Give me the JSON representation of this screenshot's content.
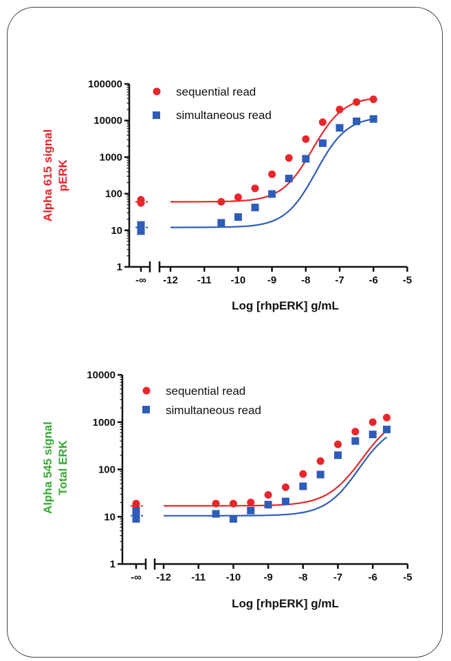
{
  "chart_data": [
    {
      "type": "scatter",
      "ylabel_lines": [
        "Alpha 615 signal",
        "pERK"
      ],
      "ylabel_color": "#e8262b",
      "xlabel": "Log [rhpERK] g/mL",
      "y_scale": "log",
      "ylim": [
        1,
        100000
      ],
      "y_ticks": [
        "1",
        "10",
        "100",
        "1000",
        "10000",
        "100000"
      ],
      "x_ticks": [
        "-12",
        "-11",
        "-10",
        "-9",
        "-8",
        "-7",
        "-6",
        "-5"
      ],
      "x_break_label": "-∞",
      "legend_placement": "top-left",
      "series": [
        {
          "name": "sequential read",
          "color": "#e8262b",
          "marker": "circle",
          "points": [
            {
              "x": "-∞",
              "y": 68
            },
            {
              "x": "-∞",
              "y": 56
            },
            {
              "x": -10.5,
              "y": 60
            },
            {
              "x": -10,
              "y": 80
            },
            {
              "x": -9.5,
              "y": 140
            },
            {
              "x": -9,
              "y": 340
            },
            {
              "x": -8.5,
              "y": 950
            },
            {
              "x": -8,
              "y": 3100
            },
            {
              "x": -7.5,
              "y": 9000
            },
            {
              "x": -7,
              "y": 20000
            },
            {
              "x": -6.5,
              "y": 32000
            },
            {
              "x": -6,
              "y": 38000
            }
          ],
          "fit": {
            "bottom": 60,
            "top": 45000,
            "logec50": -7.8,
            "hill": 0.95
          }
        },
        {
          "name": "simultaneous read",
          "color": "#2f5cb8",
          "marker": "square",
          "points": [
            {
              "x": "-∞",
              "y": 14
            },
            {
              "x": "-∞",
              "y": 11
            },
            {
              "x": "-∞",
              "y": 9.5
            },
            {
              "x": -10.5,
              "y": 16
            },
            {
              "x": -10,
              "y": 23
            },
            {
              "x": -9.5,
              "y": 42
            },
            {
              "x": -9,
              "y": 98
            },
            {
              "x": -8.5,
              "y": 260
            },
            {
              "x": -8,
              "y": 900
            },
            {
              "x": -7.5,
              "y": 2400
            },
            {
              "x": -7,
              "y": 6300
            },
            {
              "x": -6.5,
              "y": 9500
            },
            {
              "x": -6,
              "y": 11000
            }
          ],
          "fit": {
            "bottom": 12,
            "top": 13000,
            "logec50": -7.7,
            "hill": 0.95
          }
        }
      ]
    },
    {
      "type": "scatter",
      "ylabel_lines": [
        "Alpha 545 signal",
        "Total  ERK"
      ],
      "ylabel_color": "#3aa935",
      "xlabel": "Log [rhpERK] g/mL",
      "y_scale": "log",
      "ylim": [
        1,
        10000
      ],
      "y_ticks": [
        "1",
        "10",
        "100",
        "1000",
        "10000"
      ],
      "x_ticks": [
        "-12",
        "-11",
        "-10",
        "-9",
        "-8",
        "-7",
        "-6",
        "-5"
      ],
      "x_break_label": "-∞",
      "legend_placement": "top-left",
      "series": [
        {
          "name": "sequential read",
          "color": "#e8262b",
          "marker": "circle",
          "points": [
            {
              "x": "-∞",
              "y": 19
            },
            {
              "x": "-∞",
              "y": 16
            },
            {
              "x": -10.5,
              "y": 19
            },
            {
              "x": -10,
              "y": 19
            },
            {
              "x": -9.5,
              "y": 20
            },
            {
              "x": -9,
              "y": 29
            },
            {
              "x": -8.5,
              "y": 42
            },
            {
              "x": -8,
              "y": 80
            },
            {
              "x": -7.5,
              "y": 150
            },
            {
              "x": -7,
              "y": 340
            },
            {
              "x": -6.5,
              "y": 630
            },
            {
              "x": -6,
              "y": 1000
            },
            {
              "x": -5.6,
              "y": 1250
            }
          ],
          "fit": {
            "bottom": 17,
            "top": 1700,
            "logec50": -6.3,
            "hill": 0.85
          }
        },
        {
          "name": "simultaneous read",
          "color": "#2f5cb8",
          "marker": "square",
          "points": [
            {
              "x": "-∞",
              "y": 13
            },
            {
              "x": "-∞",
              "y": 10
            },
            {
              "x": "-∞",
              "y": 9
            },
            {
              "x": -10.5,
              "y": 11.5
            },
            {
              "x": -10,
              "y": 9
            },
            {
              "x": -9.5,
              "y": 13.5
            },
            {
              "x": -9,
              "y": 18
            },
            {
              "x": -8.5,
              "y": 21
            },
            {
              "x": -8,
              "y": 44
            },
            {
              "x": -7.5,
              "y": 78
            },
            {
              "x": -7,
              "y": 200
            },
            {
              "x": -6.5,
              "y": 400
            },
            {
              "x": -6,
              "y": 550
            },
            {
              "x": -5.6,
              "y": 700
            }
          ],
          "fit": {
            "bottom": 10.5,
            "top": 1000,
            "logec50": -6.4,
            "hill": 0.9
          }
        }
      ]
    }
  ]
}
